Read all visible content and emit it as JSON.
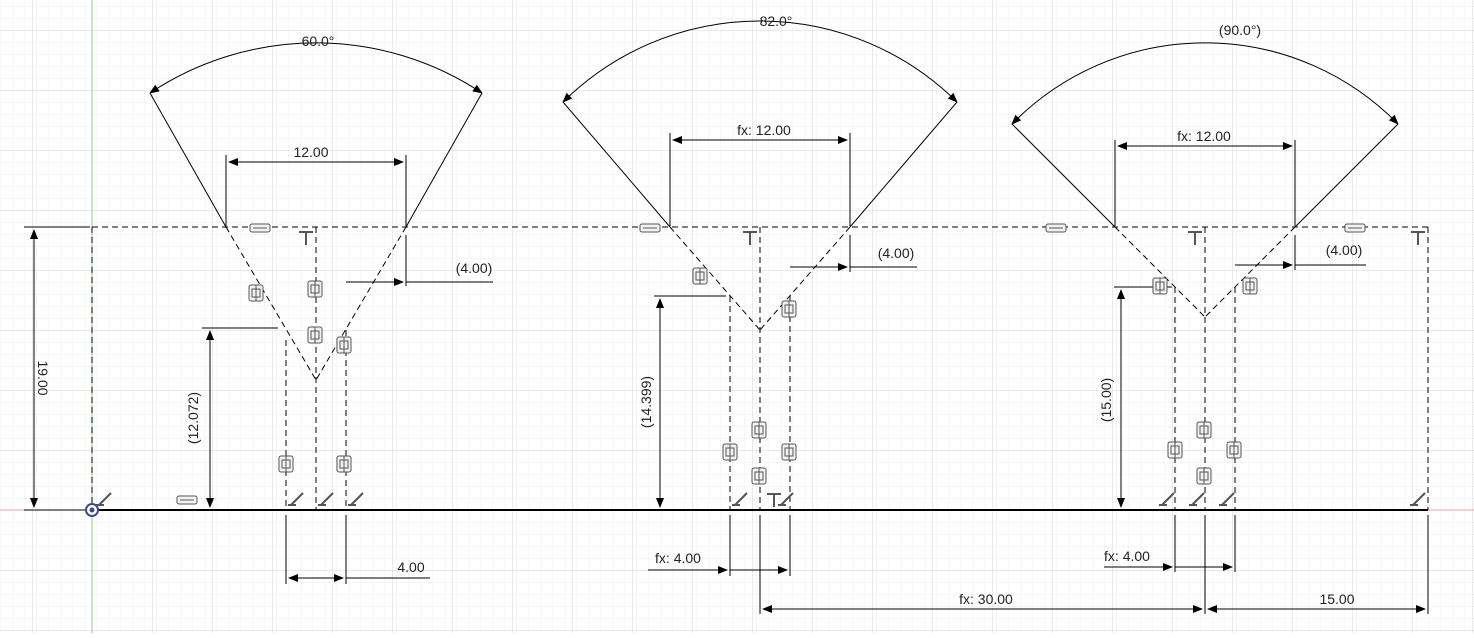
{
  "sketch": {
    "profiles": [
      {
        "id": "left",
        "angle_label": "60.0°",
        "top_width_label": "12.00",
        "side_offset_label": "(4.00)",
        "depth_label": "(12.072)",
        "slot_width_label": "4.00"
      },
      {
        "id": "middle",
        "angle_label": "82.0°",
        "top_width_label": "fx: 12.00",
        "side_offset_label": "(4.00)",
        "depth_label": "(14.399)",
        "slot_width_label": "fx: 4.00"
      },
      {
        "id": "right",
        "angle_label": "(90.0°)",
        "top_width_label": "fx: 12.00",
        "side_offset_label": "(4.00)",
        "depth_label": "(15.00)",
        "slot_width_label": "fx: 4.00"
      }
    ],
    "overall_height_label": "19.00",
    "spacing_label": "fx: 30.00",
    "end_offset_label": "15.00"
  },
  "colors": {
    "grid_minor": "#ececec",
    "grid_major": "#d6d6d6",
    "axis_y": "#8fd08f",
    "axis_x": "#e9a4a4",
    "line": "#000000",
    "constraint_icon": "#555555",
    "origin": "#3a4a8a"
  }
}
